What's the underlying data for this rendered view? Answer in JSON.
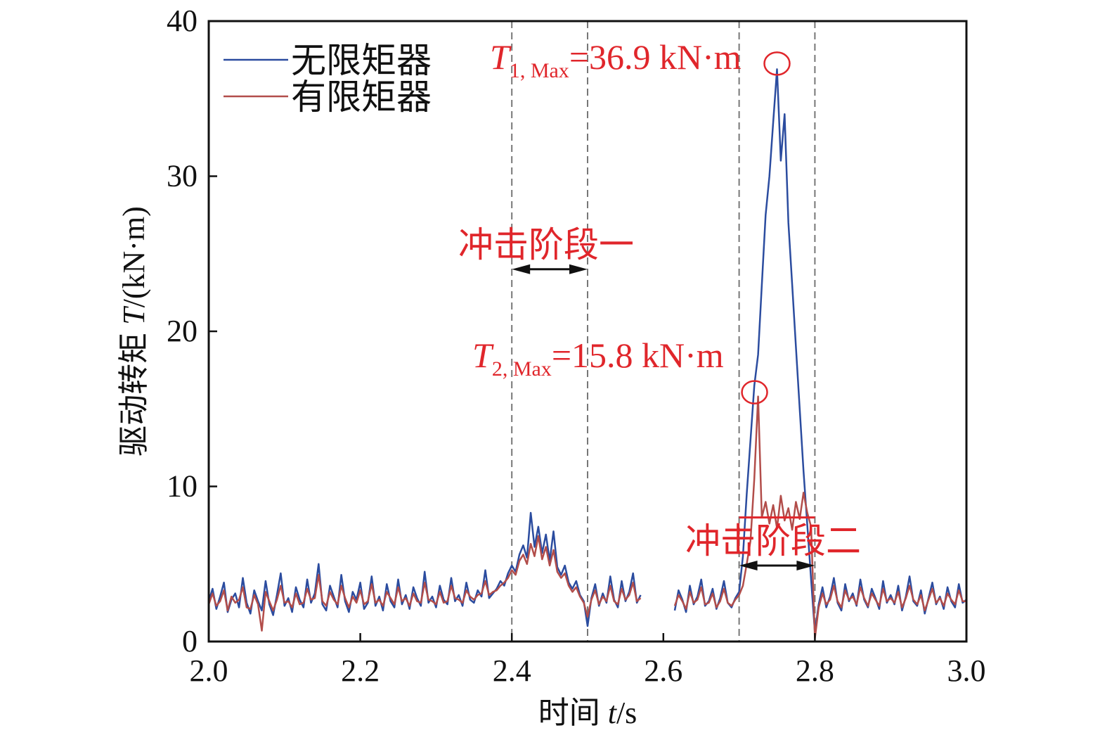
{
  "chart_data": {
    "type": "line",
    "xlabel": {
      "prefix": "时间 ",
      "var": "t",
      "suffix": "/s"
    },
    "ylabel": {
      "prefix": "驱动转矩 ",
      "var": "T",
      "suffix": "/(kN·m)"
    },
    "xlim": [
      2.0,
      3.0
    ],
    "ylim": [
      0,
      40
    ],
    "xticks": [
      "2.0",
      "2.2",
      "2.4",
      "2.6",
      "2.8",
      "3.0"
    ],
    "yticks": [
      "0",
      "10",
      "20",
      "30",
      "40"
    ],
    "grid": false,
    "legend_position": "top-left",
    "colors": {
      "series1": "#2b4c9f",
      "series2": "#b24d4a",
      "annotation": "#e0262b",
      "arrow": "#111111",
      "marker_lines": "#777777"
    },
    "vertical_dashed_lines": [
      2.4,
      2.5,
      2.7,
      2.8
    ],
    "x": [
      2.0,
      2.005,
      2.01,
      2.015,
      2.02,
      2.025,
      2.03,
      2.035,
      2.04,
      2.045,
      2.05,
      2.055,
      2.06,
      2.065,
      2.07,
      2.075,
      2.08,
      2.085,
      2.09,
      2.095,
      2.1,
      2.105,
      2.11,
      2.115,
      2.12,
      2.125,
      2.13,
      2.135,
      2.14,
      2.145,
      2.15,
      2.155,
      2.16,
      2.165,
      2.17,
      2.175,
      2.18,
      2.185,
      2.19,
      2.195,
      2.2,
      2.205,
      2.21,
      2.215,
      2.22,
      2.225,
      2.23,
      2.235,
      2.24,
      2.245,
      2.25,
      2.255,
      2.26,
      2.265,
      2.27,
      2.275,
      2.28,
      2.285,
      2.29,
      2.295,
      2.3,
      2.305,
      2.31,
      2.315,
      2.32,
      2.325,
      2.33,
      2.335,
      2.34,
      2.345,
      2.35,
      2.355,
      2.36,
      2.365,
      2.37,
      2.375,
      2.38,
      2.385,
      2.39,
      2.395,
      2.4,
      2.405,
      2.41,
      2.415,
      2.42,
      2.425,
      2.43,
      2.435,
      2.44,
      2.445,
      2.45,
      2.455,
      2.46,
      2.465,
      2.47,
      2.475,
      2.48,
      2.485,
      2.49,
      2.495,
      2.5,
      2.505,
      2.51,
      2.515,
      2.52,
      2.525,
      2.53,
      2.535,
      2.54,
      2.545,
      2.55,
      2.555,
      2.56,
      2.565,
      2.57,
      2.575,
      2.58,
      2.585,
      2.59,
      2.595,
      2.6,
      2.605,
      2.61,
      2.615,
      2.62,
      2.625,
      2.63,
      2.635,
      2.64,
      2.645,
      2.65,
      2.655,
      2.66,
      2.665,
      2.67,
      2.675,
      2.68,
      2.685,
      2.69,
      2.695,
      2.7,
      2.705,
      2.71,
      2.715,
      2.72,
      2.725,
      2.73,
      2.735,
      2.74,
      2.745,
      2.75,
      2.755,
      2.76,
      2.765,
      2.77,
      2.775,
      2.78,
      2.785,
      2.79,
      2.795,
      2.8,
      2.805,
      2.81,
      2.815,
      2.82,
      2.825,
      2.83,
      2.835,
      2.84,
      2.845,
      2.85,
      2.855,
      2.86,
      2.865,
      2.87,
      2.875,
      2.88,
      2.885,
      2.89,
      2.895,
      2.9,
      2.905,
      2.91,
      2.915,
      2.92,
      2.925,
      2.93,
      2.935,
      2.94,
      2.945,
      2.95,
      2.955,
      2.96,
      2.965,
      2.97,
      2.975,
      2.98,
      2.985,
      2.99,
      2.995,
      3.0
    ],
    "series": [
      {
        "name": "无限矩器",
        "values": [
          2.6,
          3.4,
          2.1,
          2.9,
          3.8,
          1.9,
          2.7,
          3.1,
          2.2,
          4.1,
          2.5,
          1.8,
          3.3,
          2.6,
          2.0,
          3.9,
          2.4,
          1.7,
          3.0,
          4.4,
          2.3,
          2.8,
          1.9,
          3.5,
          2.7,
          2.2,
          4.0,
          2.5,
          3.1,
          5.0,
          2.4,
          2.0,
          3.6,
          2.9,
          2.2,
          4.3,
          2.6,
          1.9,
          3.2,
          2.7,
          3.8,
          2.1,
          2.5,
          4.2,
          2.3,
          2.9,
          2.0,
          3.7,
          2.6,
          2.2,
          4.0,
          2.4,
          3.0,
          2.1,
          3.5,
          2.8,
          2.3,
          4.5,
          2.5,
          2.9,
          2.2,
          3.6,
          2.7,
          2.4,
          4.1,
          2.6,
          3.0,
          2.3,
          3.8,
          2.7,
          2.5,
          3.3,
          2.9,
          4.6,
          2.8,
          3.1,
          3.4,
          3.9,
          3.6,
          4.4,
          4.9,
          4.5,
          5.6,
          6.2,
          5.4,
          8.3,
          6.1,
          7.4,
          5.7,
          6.9,
          5.2,
          7.1,
          4.8,
          4.3,
          4.9,
          3.8,
          3.4,
          3.9,
          3.0,
          2.6,
          1.0,
          2.8,
          3.7,
          2.3,
          3.1,
          2.5,
          4.2,
          2.7,
          2.2,
          3.9,
          2.6,
          3.2,
          4.4,
          2.5,
          3.0,
          null,
          null,
          null,
          null,
          null,
          null,
          null,
          null,
          2.0,
          3.3,
          2.7,
          1.9,
          3.6,
          2.4,
          2.9,
          4.0,
          2.3,
          2.6,
          3.4,
          2.1,
          2.8,
          3.9,
          2.5,
          2.2,
          2.8,
          3.2,
          5.5,
          9.5,
          13.0,
          16.5,
          18.5,
          23.0,
          27.5,
          30.0,
          33.5,
          36.9,
          31.0,
          34.0,
          27.0,
          23.0,
          19.0,
          15.0,
          11.0,
          7.5,
          4.0,
          0.6,
          2.4,
          3.5,
          2.2,
          2.9,
          4.1,
          2.5,
          2.0,
          3.7,
          2.6,
          3.1,
          2.3,
          4.0,
          2.7,
          2.2,
          3.4,
          2.8,
          2.1,
          3.9,
          2.5,
          3.0,
          2.4,
          3.6,
          2.0,
          2.9,
          4.2,
          2.6,
          2.3,
          3.3,
          1.8,
          2.8,
          3.8,
          2.4,
          2.9,
          2.1,
          3.5,
          2.6,
          2.2,
          3.7,
          2.5,
          2.7
        ]
      },
      {
        "name": "有限矩器",
        "values": [
          2.4,
          3.1,
          2.3,
          2.6,
          3.3,
          2.0,
          2.9,
          2.5,
          2.7,
          3.5,
          2.2,
          2.1,
          3.0,
          2.4,
          0.7,
          3.2,
          2.6,
          2.0,
          2.7,
          3.6,
          2.5,
          2.6,
          2.2,
          3.1,
          2.4,
          2.5,
          3.4,
          2.7,
          2.8,
          4.3,
          2.6,
          2.3,
          3.2,
          2.7,
          2.4,
          3.6,
          2.8,
          2.2,
          2.9,
          2.5,
          3.3,
          2.4,
          2.6,
          3.7,
          2.5,
          2.7,
          2.3,
          3.2,
          2.8,
          2.4,
          3.5,
          2.6,
          2.8,
          2.3,
          3.1,
          2.6,
          2.5,
          3.8,
          2.7,
          2.6,
          2.4,
          3.2,
          2.5,
          2.6,
          3.6,
          2.8,
          2.7,
          2.5,
          3.3,
          2.9,
          2.7,
          3.0,
          3.1,
          3.9,
          3.0,
          3.2,
          3.3,
          3.6,
          3.8,
          4.1,
          4.6,
          4.3,
          5.2,
          5.6,
          5.0,
          6.3,
          5.5,
          6.8,
          5.3,
          6.1,
          4.9,
          5.9,
          4.5,
          4.1,
          4.4,
          3.6,
          3.2,
          3.5,
          2.9,
          2.5,
          1.6,
          2.7,
          3.3,
          2.4,
          2.9,
          2.6,
          3.6,
          2.6,
          2.4,
          3.4,
          2.7,
          3.0,
          3.8,
          2.6,
          2.8,
          null,
          null,
          null,
          null,
          null,
          null,
          null,
          null,
          2.3,
          3.0,
          2.6,
          2.1,
          3.2,
          2.5,
          2.7,
          3.5,
          2.4,
          2.5,
          3.1,
          2.2,
          2.6,
          3.4,
          2.5,
          2.3,
          2.7,
          3.0,
          3.6,
          5.0,
          6.5,
          10.5,
          15.8,
          8.0,
          9.0,
          7.6,
          8.8,
          7.3,
          9.4,
          7.8,
          8.6,
          7.2,
          9.0,
          7.9,
          9.6,
          8.3,
          7.4,
          0.2,
          2.2,
          3.1,
          2.4,
          2.7,
          3.6,
          2.6,
          2.2,
          3.3,
          2.7,
          2.9,
          2.4,
          3.5,
          2.8,
          2.3,
          3.1,
          2.7,
          2.3,
          3.4,
          2.6,
          2.8,
          2.5,
          3.2,
          2.2,
          2.8,
          3.6,
          2.7,
          2.4,
          3.0,
          2.0,
          2.7,
          3.4,
          2.5,
          2.8,
          2.3,
          3.1,
          2.7,
          2.4,
          3.3,
          2.6,
          2.6
        ]
      }
    ],
    "annotations": {
      "peak1": {
        "var": "T",
        "sub": "1, Max",
        "text": "=36.9 kN·m",
        "x": 2.75,
        "y": 36.9
      },
      "peak2": {
        "var": "T",
        "sub": "2, Max",
        "text": "=15.8 kN·m",
        "x": 2.725,
        "y": 15.8
      },
      "stage1": {
        "label": "冲击阶段一",
        "x_from": 2.4,
        "x_to": 2.5,
        "y": 24
      },
      "stage2": {
        "label": "冲击阶段二",
        "x_from": 2.7,
        "x_to": 2.8,
        "y": 4.9
      },
      "level_line": {
        "x_from": 2.7,
        "x_to": 2.8,
        "y": 8
      }
    }
  }
}
